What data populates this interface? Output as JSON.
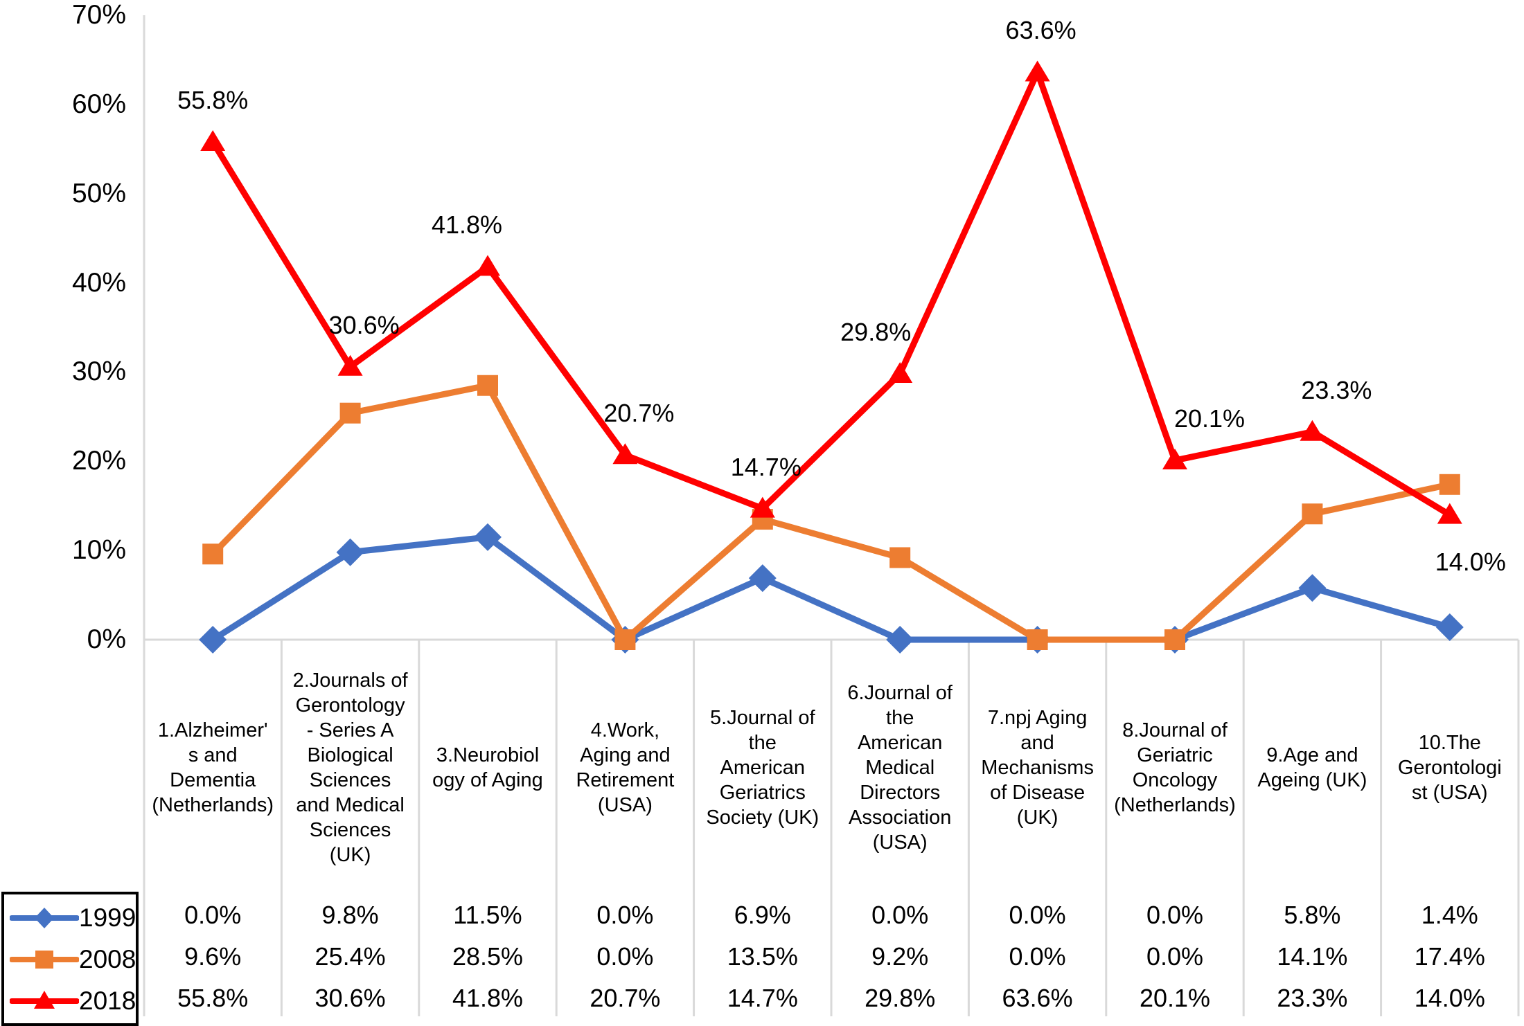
{
  "chart_data": {
    "type": "line",
    "title": "",
    "xlabel": "",
    "ylabel": "",
    "grid": false,
    "legend_position": "bottom-left",
    "y_axis": {
      "min": 0,
      "max": 70,
      "step": 10,
      "tick_labels": [
        "0%",
        "10%",
        "20%",
        "30%",
        "40%",
        "50%",
        "60%",
        "70%"
      ]
    },
    "categories": [
      "1.Alzheimer'\ns and\nDementia\n(Netherlands)",
      "2.Journals of\nGerontology\n- Series A\nBiological\nSciences\nand Medical\nSciences\n(UK)",
      "3.Neurobiol\nogy of Aging",
      "4.Work,\nAging and\nRetirement\n(USA)",
      "5.Journal of\nthe\nAmerican\nGeriatrics\nSociety (UK)",
      "6.Journal of\nthe\nAmerican\nMedical\nDirectors\nAssociation\n(USA)",
      "7.npj Aging\nand\nMechanisms\nof Disease\n(UK)",
      "8.Journal of\nGeriatric\nOncology\n(Netherlands)",
      "9.Age and\nAgeing (UK)",
      "10.The\nGerontologi\nst (USA)"
    ],
    "series": [
      {
        "name": "1999",
        "color": "#4472C4",
        "marker": "diamond",
        "values": [
          0.0,
          9.8,
          11.5,
          0.0,
          6.9,
          0.0,
          0.0,
          0.0,
          5.8,
          1.4
        ],
        "display": [
          "0.0%",
          "9.8%",
          "11.5%",
          "0.0%",
          "6.9%",
          "0.0%",
          "0.0%",
          "0.0%",
          "5.8%",
          "1.4%"
        ],
        "data_labels": false
      },
      {
        "name": "2008",
        "color": "#ED7D31",
        "marker": "square",
        "values": [
          9.6,
          25.4,
          28.5,
          0.0,
          13.5,
          9.2,
          0.0,
          0.0,
          14.1,
          17.4
        ],
        "display": [
          "9.6%",
          "25.4%",
          "28.5%",
          "0.0%",
          "13.5%",
          "9.2%",
          "0.0%",
          "0.0%",
          "14.1%",
          "17.4%"
        ],
        "data_labels": false
      },
      {
        "name": "2018",
        "color": "#FF0000",
        "marker": "triangle",
        "values": [
          55.8,
          30.6,
          41.8,
          20.7,
          14.7,
          29.8,
          63.6,
          20.1,
          23.3,
          14.0
        ],
        "display": [
          "55.8%",
          "30.6%",
          "41.8%",
          "20.7%",
          "14.7%",
          "29.8%",
          "63.6%",
          "20.1%",
          "23.3%",
          "14.0%"
        ],
        "data_labels": true
      }
    ],
    "colors": {
      "axis_line": "#D9D9D9",
      "table_line": "#D9D9D9",
      "text": "#000000",
      "legend_border": "#000000",
      "background": "#FFFFFF"
    }
  }
}
